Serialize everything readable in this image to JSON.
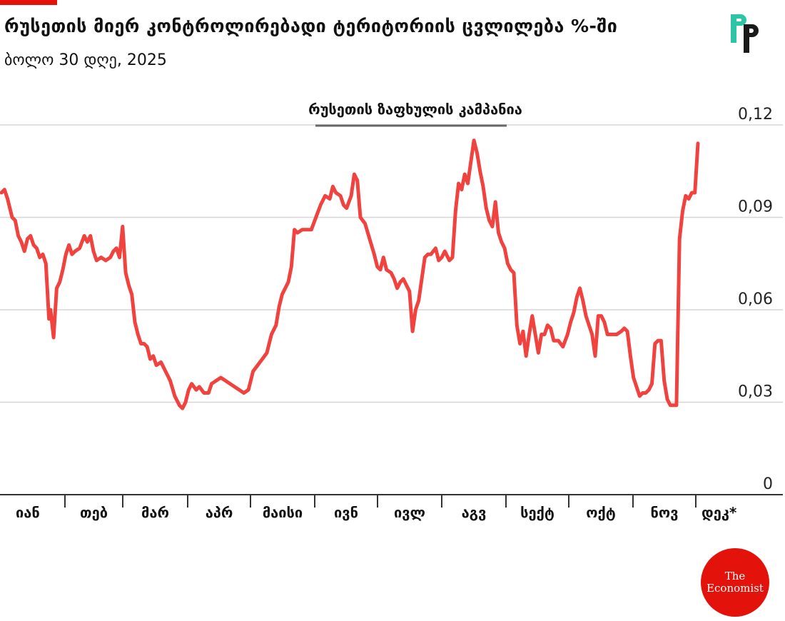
{
  "header": {
    "title": "რუსეთის მიერ კონტროლირებადი ტერიტორიის ცვლილება %-ში",
    "subtitle": "ბოლო 30 დღე, 2025"
  },
  "logos": {
    "rp_letters": "RP",
    "economist_line1": "The",
    "economist_line2": "Economist"
  },
  "colors": {
    "line": "#f0423e",
    "grid": "#d6d6d6",
    "axis": "#333333",
    "accent": "#e3120b",
    "rp_teal": "#2ec4a6",
    "rp_dark": "#1a1a1a",
    "annotation_bar": "#666666"
  },
  "chart_data": {
    "type": "line",
    "title": "",
    "xlabel": "",
    "ylabel": "",
    "ylim": [
      0,
      0.12
    ],
    "y_ticks": [
      "0",
      "0,03",
      "0,06",
      "0,09",
      "0,12"
    ],
    "y_tick_values": [
      0,
      0.03,
      0.06,
      0.09,
      0.12
    ],
    "month_labels": [
      "იან",
      "თებ",
      "მარ",
      "აპრ",
      "მაისი",
      "ივნ",
      "ივლ",
      "აგვ",
      "სექტ",
      "ოქტ",
      "ნოვ",
      "დეკ*"
    ],
    "annotation": {
      "label": "რუსეთის ზაფხულის კამპანია",
      "start_day": 173,
      "end_day": 263
    },
    "grid": true,
    "legend": "none",
    "series": [
      {
        "values_by_day": [
          [
            1,
            0.098
          ],
          [
            3,
            0.099
          ],
          [
            5,
            0.096
          ],
          [
            8,
            0.09
          ],
          [
            10,
            0.089
          ],
          [
            12,
            0.084
          ],
          [
            14,
            0.082
          ],
          [
            16,
            0.079
          ],
          [
            18,
            0.083
          ],
          [
            20,
            0.084
          ],
          [
            22,
            0.081
          ],
          [
            24,
            0.08
          ],
          [
            26,
            0.077
          ],
          [
            28,
            0.078
          ],
          [
            30,
            0.075
          ],
          [
            32,
            0.057
          ],
          [
            33,
            0.06
          ],
          [
            35,
            0.051
          ],
          [
            37,
            0.067
          ],
          [
            39,
            0.069
          ],
          [
            41,
            0.073
          ],
          [
            43,
            0.078
          ],
          [
            45,
            0.081
          ],
          [
            47,
            0.078
          ],
          [
            49,
            0.079
          ],
          [
            52,
            0.08
          ],
          [
            55,
            0.084
          ],
          [
            57,
            0.082
          ],
          [
            59,
            0.084
          ],
          [
            61,
            0.079
          ],
          [
            63,
            0.076
          ],
          [
            66,
            0.077
          ],
          [
            69,
            0.076
          ],
          [
            72,
            0.077
          ],
          [
            74,
            0.079
          ],
          [
            76,
            0.08
          ],
          [
            78,
            0.077
          ],
          [
            80,
            0.087
          ],
          [
            82,
            0.072
          ],
          [
            84,
            0.068
          ],
          [
            86,
            0.065
          ],
          [
            88,
            0.056
          ],
          [
            90,
            0.052
          ],
          [
            92,
            0.049
          ],
          [
            94,
            0.049
          ],
          [
            96,
            0.048
          ],
          [
            98,
            0.044
          ],
          [
            100,
            0.045
          ],
          [
            102,
            0.042
          ],
          [
            105,
            0.043
          ],
          [
            108,
            0.04
          ],
          [
            111,
            0.037
          ],
          [
            114,
            0.032
          ],
          [
            117,
            0.029
          ],
          [
            119,
            0.028
          ],
          [
            121,
            0.03
          ],
          [
            123,
            0.034
          ],
          [
            125,
            0.036
          ],
          [
            128,
            0.034
          ],
          [
            130,
            0.035
          ],
          [
            133,
            0.033
          ],
          [
            136,
            0.033
          ],
          [
            138,
            0.036
          ],
          [
            141,
            0.037
          ],
          [
            144,
            0.038
          ],
          [
            147,
            0.037
          ],
          [
            150,
            0.036
          ],
          [
            153,
            0.035
          ],
          [
            156,
            0.034
          ],
          [
            159,
            0.033
          ],
          [
            162,
            0.034
          ],
          [
            165,
            0.04
          ],
          [
            168,
            0.042
          ],
          [
            171,
            0.044
          ],
          [
            174,
            0.046
          ],
          [
            177,
            0.052
          ],
          [
            180,
            0.055
          ],
          [
            182,
            0.061
          ],
          [
            184,
            0.065
          ],
          [
            186,
            0.067
          ],
          [
            188,
            0.069
          ],
          [
            190,
            0.074
          ],
          [
            192,
            0.086
          ],
          [
            194,
            0.085
          ],
          [
            197,
            0.086
          ],
          [
            200,
            0.086
          ],
          [
            203,
            0.086
          ],
          [
            206,
            0.09
          ],
          [
            209,
            0.094
          ],
          [
            212,
            0.097
          ],
          [
            215,
            0.096
          ],
          [
            217,
            0.1
          ],
          [
            219,
            0.098
          ],
          [
            222,
            0.097
          ],
          [
            224,
            0.094
          ],
          [
            226,
            0.093
          ],
          [
            229,
            0.097
          ],
          [
            231,
            0.104
          ],
          [
            233,
            0.102
          ],
          [
            235,
            0.09
          ],
          [
            238,
            0.088
          ],
          [
            241,
            0.083
          ],
          [
            244,
            0.078
          ],
          [
            246,
            0.074
          ],
          [
            248,
            0.073
          ],
          [
            250,
            0.077
          ],
          [
            252,
            0.073
          ],
          [
            255,
            0.072
          ],
          [
            257,
            0.07
          ],
          [
            259,
            0.067
          ],
          [
            261,
            0.069
          ],
          [
            263,
            0.07
          ],
          [
            265,
            0.068
          ],
          [
            267,
            0.066
          ],
          [
            269,
            0.053
          ],
          [
            271,
            0.06
          ],
          [
            273,
            0.063
          ],
          [
            275,
            0.07
          ],
          [
            277,
            0.077
          ],
          [
            279,
            0.078
          ],
          [
            281,
            0.078
          ],
          [
            284,
            0.08
          ],
          [
            286,
            0.076
          ],
          [
            288,
            0.077
          ],
          [
            290,
            0.079
          ],
          [
            293,
            0.076
          ],
          [
            295,
            0.077
          ],
          [
            297,
            0.092
          ],
          [
            299,
            0.101
          ],
          [
            301,
            0.099
          ],
          [
            303,
            0.104
          ],
          [
            305,
            0.101
          ],
          [
            307,
            0.108
          ],
          [
            309,
            0.115
          ],
          [
            311,
            0.111
          ],
          [
            313,
            0.105
          ],
          [
            315,
            0.1
          ],
          [
            317,
            0.093
          ],
          [
            319,
            0.089
          ],
          [
            321,
            0.087
          ],
          [
            323,
            0.095
          ],
          [
            325,
            0.085
          ],
          [
            327,
            0.082
          ],
          [
            329,
            0.08
          ],
          [
            331,
            0.075
          ],
          [
            333,
            0.073
          ],
          [
            335,
            0.072
          ],
          [
            337,
            0.055
          ],
          [
            339,
            0.049
          ],
          [
            341,
            0.053
          ],
          [
            343,
            0.045
          ],
          [
            345,
            0.052
          ],
          [
            347,
            0.058
          ],
          [
            349,
            0.052
          ],
          [
            351,
            0.046
          ],
          [
            353,
            0.052
          ],
          [
            355,
            0.052
          ],
          [
            357,
            0.055
          ],
          [
            359,
            0.054
          ],
          [
            361,
            0.05
          ],
          [
            364,
            0.05
          ],
          [
            367,
            0.048
          ],
          [
            370,
            0.052
          ],
          [
            372,
            0.056
          ],
          [
            374,
            0.059
          ],
          [
            376,
            0.064
          ],
          [
            378,
            0.067
          ],
          [
            380,
            0.063
          ],
          [
            382,
            0.058
          ],
          [
            384,
            0.055
          ],
          [
            386,
            0.052
          ],
          [
            388,
            0.045
          ],
          [
            390,
            0.058
          ],
          [
            392,
            0.058
          ],
          [
            394,
            0.056
          ],
          [
            396,
            0.052
          ],
          [
            399,
            0.052
          ],
          [
            402,
            0.052
          ],
          [
            405,
            0.053
          ],
          [
            407,
            0.054
          ],
          [
            409,
            0.053
          ],
          [
            411,
            0.045
          ],
          [
            413,
            0.038
          ],
          [
            415,
            0.035
          ],
          [
            417,
            0.032
          ],
          [
            419,
            0.033
          ],
          [
            421,
            0.033
          ],
          [
            423,
            0.034
          ],
          [
            425,
            0.036
          ],
          [
            427,
            0.049
          ],
          [
            429,
            0.05
          ],
          [
            431,
            0.05
          ],
          [
            433,
            0.037
          ],
          [
            435,
            0.031
          ],
          [
            437,
            0.029
          ],
          [
            439,
            0.029
          ],
          [
            441,
            0.029
          ],
          [
            443,
            0.083
          ],
          [
            445,
            0.092
          ],
          [
            447,
            0.097
          ],
          [
            449,
            0.096
          ],
          [
            451,
            0.098
          ],
          [
            453,
            0.098
          ],
          [
            455,
            0.114
          ]
        ]
      }
    ]
  }
}
